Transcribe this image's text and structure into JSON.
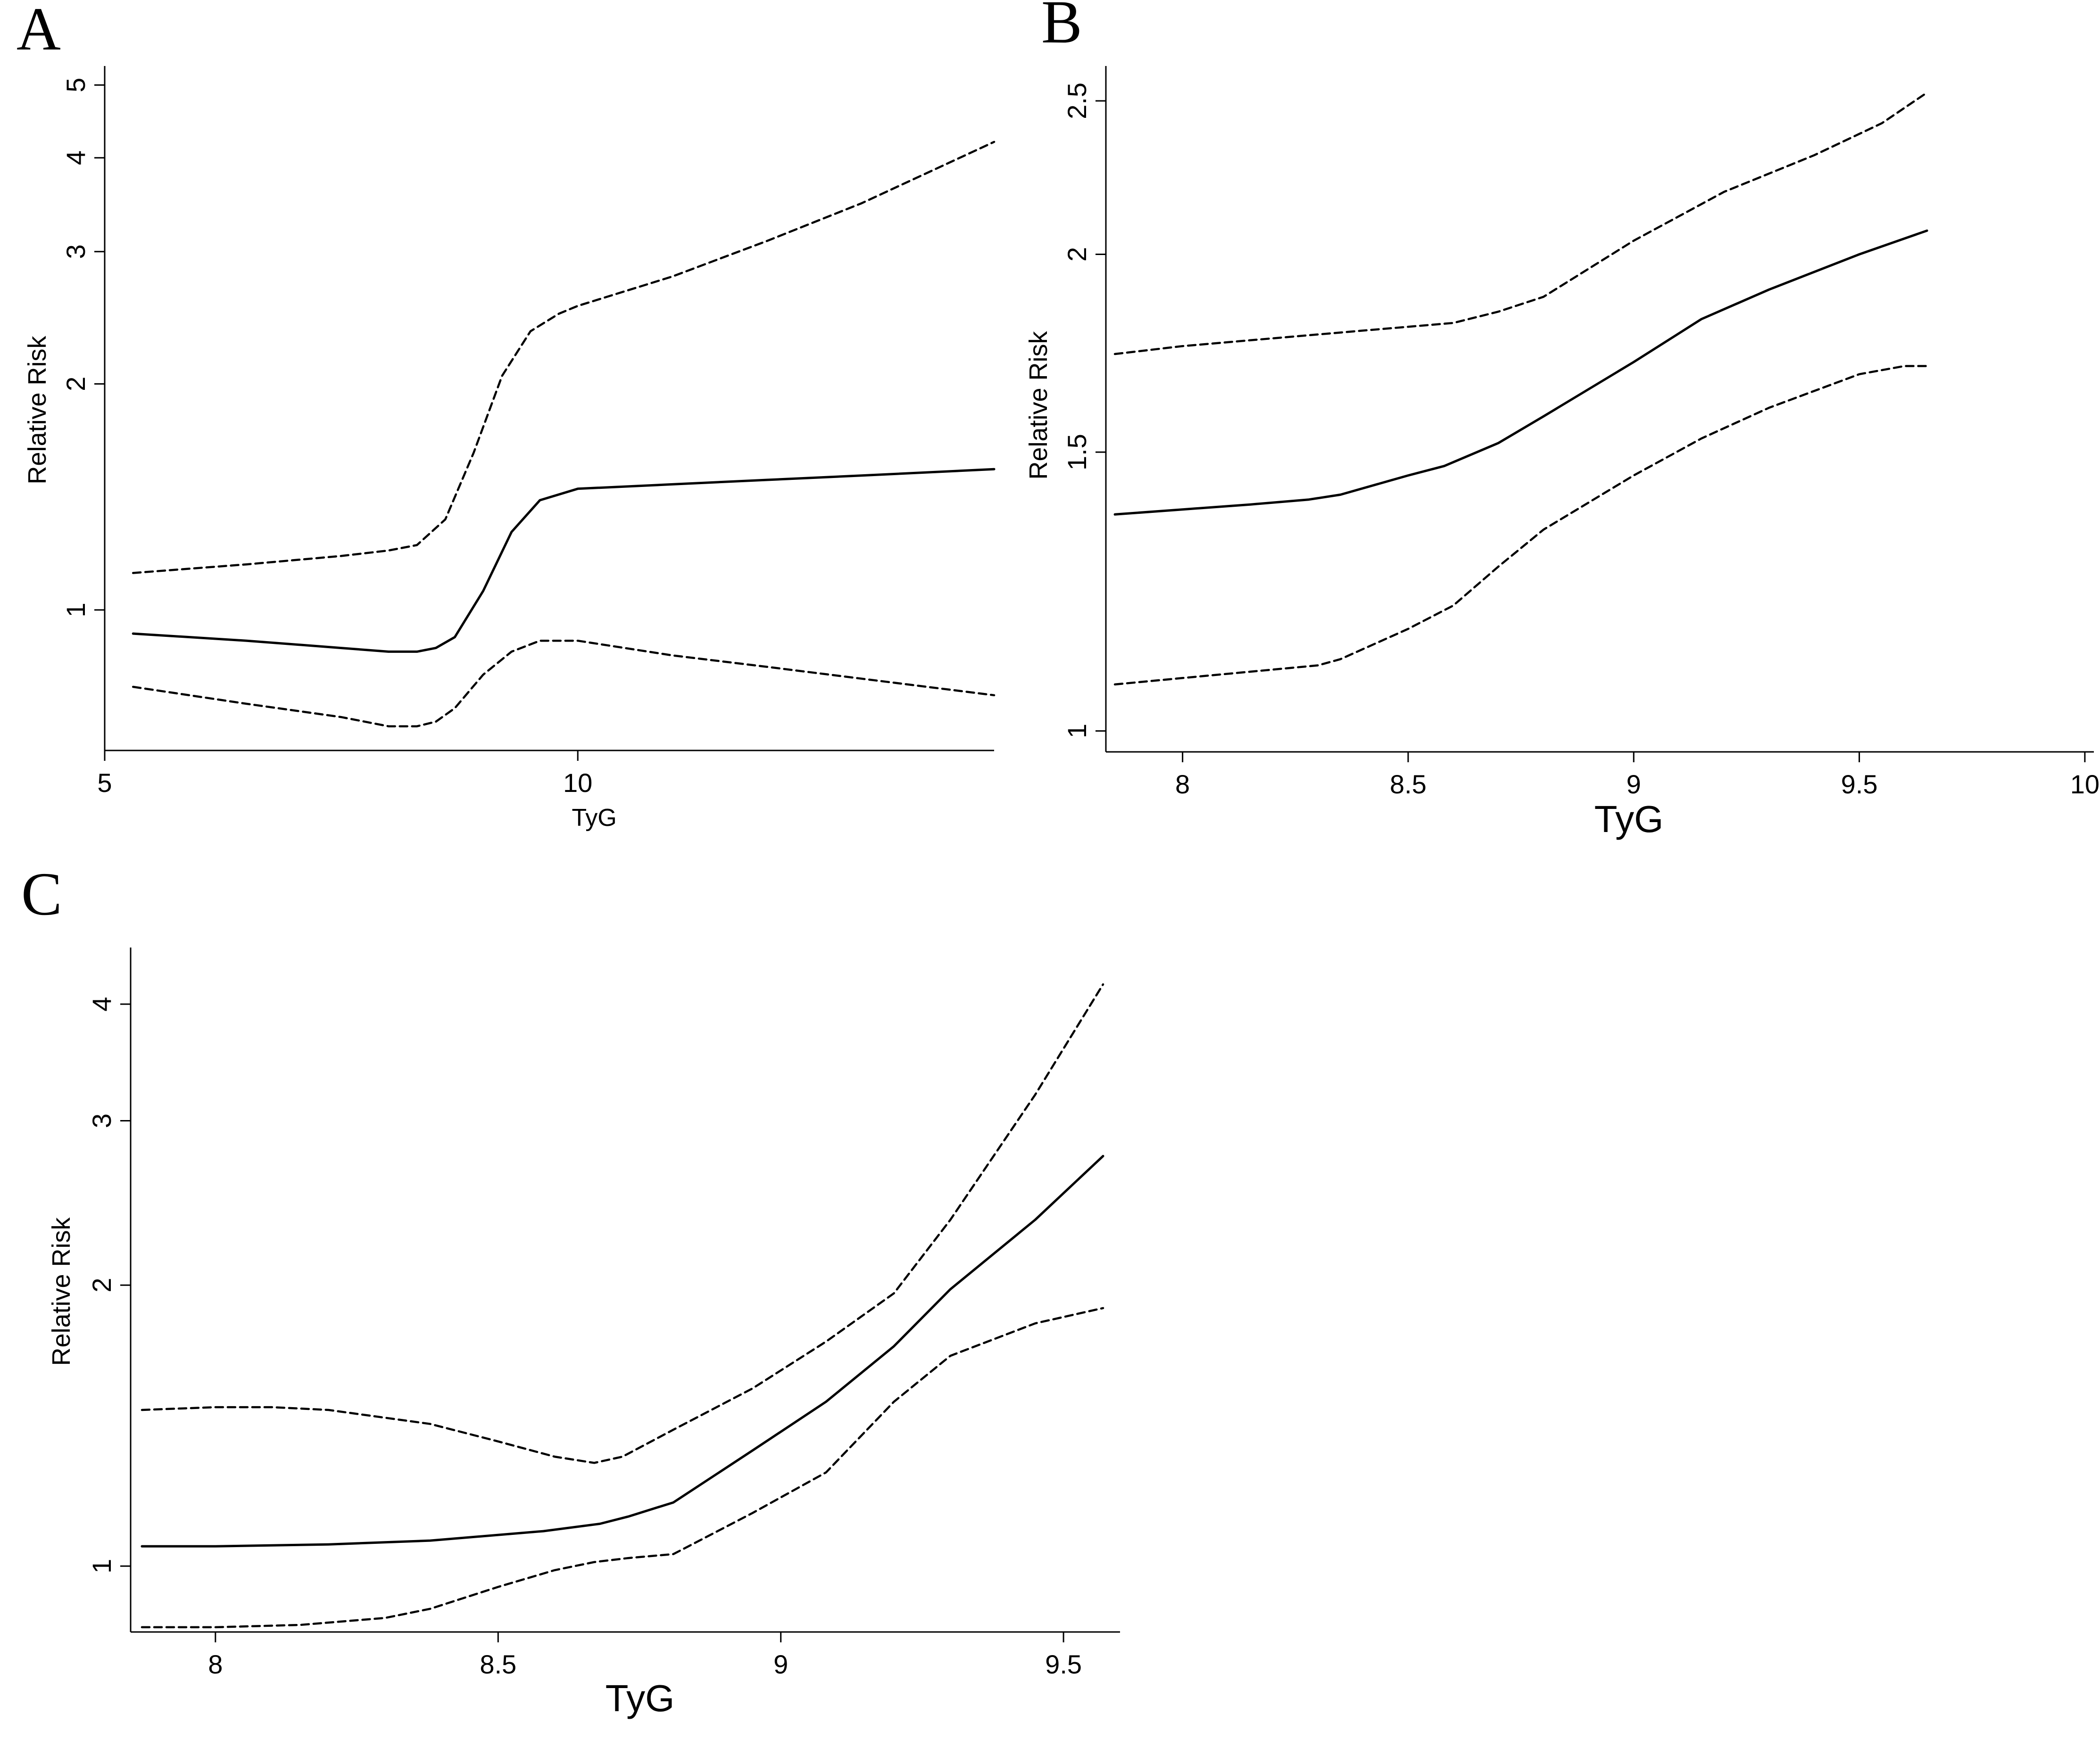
{
  "chart_data": [
    {
      "panel": "A",
      "type": "line",
      "xlabel": "TyG",
      "ylabel": "Relative Risk",
      "y_scale": "log",
      "xlim": [
        5,
        14.4
      ],
      "ylim": [
        0.65,
        5.3
      ],
      "x_ticks": [
        5,
        10
      ],
      "y_ticks": [
        1,
        2,
        3,
        4,
        5
      ],
      "series": [
        {
          "style": "solid",
          "x": [
            5.3,
            6.5,
            7.5,
            8.0,
            8.3,
            8.5,
            8.7,
            9.0,
            9.3,
            9.6,
            10.0,
            11.0,
            12.0,
            13.0,
            14.4
          ],
          "y": [
            0.93,
            0.91,
            0.89,
            0.88,
            0.88,
            0.89,
            0.92,
            1.06,
            1.27,
            1.4,
            1.45,
            1.47,
            1.49,
            1.51,
            1.54
          ]
        },
        {
          "style": "dashed",
          "x": [
            5.3,
            6.5,
            7.5,
            8.0,
            8.3,
            8.6,
            8.9,
            9.2,
            9.5,
            9.8,
            10.0,
            11.0,
            12.0,
            13.0,
            14.4
          ],
          "y": [
            1.12,
            1.15,
            1.18,
            1.2,
            1.22,
            1.32,
            1.62,
            2.05,
            2.35,
            2.48,
            2.54,
            2.78,
            3.1,
            3.48,
            4.2
          ]
        },
        {
          "style": "dashed",
          "x": [
            5.3,
            6.5,
            7.5,
            8.0,
            8.3,
            8.5,
            8.7,
            9.0,
            9.3,
            9.6,
            10.0,
            11.0,
            12.0,
            13.0,
            14.4
          ],
          "y": [
            0.79,
            0.75,
            0.72,
            0.7,
            0.7,
            0.71,
            0.74,
            0.82,
            0.88,
            0.91,
            0.91,
            0.87,
            0.84,
            0.81,
            0.77
          ]
        }
      ]
    },
    {
      "panel": "B",
      "type": "line",
      "xlabel": "TyG",
      "ylabel": "Relative Risk",
      "y_scale": "log",
      "xlim": [
        7.83,
        10.02
      ],
      "ylim": [
        0.97,
        2.63
      ],
      "x_ticks": [
        8,
        8.5,
        9,
        9.5,
        10
      ],
      "y_ticks": [
        1,
        1.5,
        2,
        2.5
      ],
      "series": [
        {
          "style": "solid",
          "x": [
            7.85,
            8.0,
            8.15,
            8.28,
            8.35,
            8.5,
            8.58,
            8.7,
            8.8,
            9.0,
            9.15,
            9.3,
            9.5,
            9.65
          ],
          "y": [
            1.37,
            1.38,
            1.39,
            1.4,
            1.41,
            1.45,
            1.47,
            1.52,
            1.58,
            1.71,
            1.82,
            1.9,
            2.0,
            2.07
          ]
        },
        {
          "style": "dashed",
          "x": [
            7.85,
            8.0,
            8.2,
            8.4,
            8.6,
            8.7,
            8.8,
            9.0,
            9.2,
            9.4,
            9.55,
            9.65
          ],
          "y": [
            1.73,
            1.75,
            1.77,
            1.79,
            1.81,
            1.84,
            1.88,
            2.04,
            2.19,
            2.31,
            2.42,
            2.53
          ]
        },
        {
          "style": "dashed",
          "x": [
            7.85,
            8.0,
            8.15,
            8.3,
            8.35,
            8.5,
            8.6,
            8.7,
            8.8,
            9.0,
            9.15,
            9.3,
            9.5,
            9.6,
            9.65
          ],
          "y": [
            1.07,
            1.08,
            1.09,
            1.1,
            1.11,
            1.16,
            1.2,
            1.27,
            1.34,
            1.45,
            1.53,
            1.6,
            1.68,
            1.7,
            1.7
          ]
        }
      ]
    },
    {
      "panel": "C",
      "type": "line",
      "xlabel": "TyG",
      "ylabel": "Relative Risk",
      "y_scale": "log",
      "xlim": [
        7.85,
        9.6
      ],
      "ylim": [
        0.85,
        4.6
      ],
      "x_ticks": [
        8,
        8.5,
        9,
        9.5
      ],
      "y_ticks": [
        1,
        2,
        3,
        4
      ],
      "series": [
        {
          "style": "solid",
          "x": [
            7.87,
            8.0,
            8.2,
            8.38,
            8.58,
            8.68,
            8.73,
            8.81,
            8.95,
            9.08,
            9.2,
            9.3,
            9.45,
            9.57
          ],
          "y": [
            1.05,
            1.05,
            1.055,
            1.065,
            1.09,
            1.11,
            1.13,
            1.17,
            1.33,
            1.5,
            1.72,
            1.98,
            2.35,
            2.75
          ]
        },
        {
          "style": "dashed",
          "x": [
            7.87,
            8.0,
            8.1,
            8.2,
            8.38,
            8.5,
            8.6,
            8.67,
            8.72,
            8.81,
            8.95,
            9.08,
            9.2,
            9.3,
            9.45,
            9.57
          ],
          "y": [
            1.47,
            1.48,
            1.48,
            1.47,
            1.42,
            1.36,
            1.31,
            1.29,
            1.31,
            1.4,
            1.55,
            1.74,
            1.96,
            2.35,
            3.2,
            4.2
          ]
        },
        {
          "style": "dashed",
          "x": [
            7.87,
            8.0,
            8.15,
            8.3,
            8.38,
            8.5,
            8.6,
            8.67,
            8.73,
            8.81,
            8.95,
            9.08,
            9.2,
            9.3,
            9.45,
            9.57
          ],
          "y": [
            0.86,
            0.86,
            0.865,
            0.88,
            0.9,
            0.95,
            0.99,
            1.01,
            1.02,
            1.03,
            1.14,
            1.26,
            1.5,
            1.68,
            1.82,
            1.89
          ]
        }
      ]
    }
  ]
}
